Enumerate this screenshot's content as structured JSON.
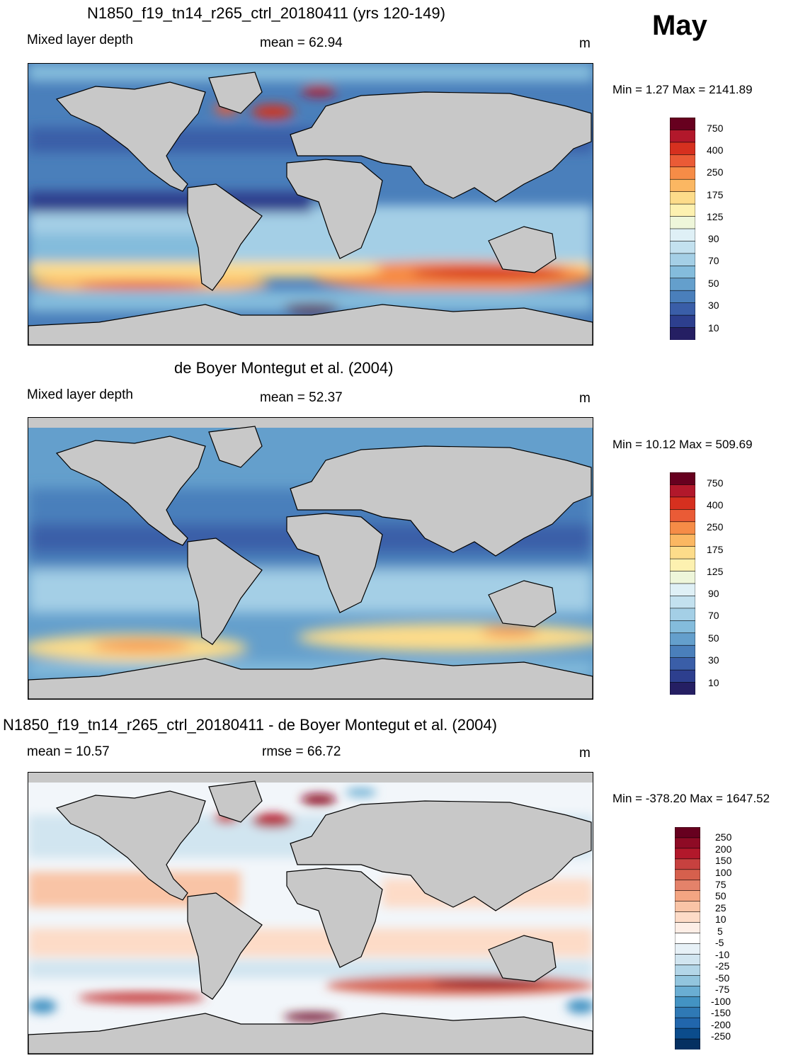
{
  "header": {
    "month": "May"
  },
  "panels": [
    {
      "id": "model",
      "title": "N1850_f19_tn14_r265_ctrl_20180411 (yrs 120-149)",
      "left_label": "Mixed layer depth",
      "center_label": "mean =  62.94",
      "units": "m",
      "minmax": "Min =   1.27 Max = 2141.89",
      "colorbar": {
        "labels": [
          "750",
          "400",
          "250",
          "175",
          "125",
          "90",
          "70",
          "50",
          "30",
          "10"
        ],
        "colors": [
          "#67001f",
          "#b2182b",
          "#d6301f",
          "#ea5b36",
          "#f68c47",
          "#fbb762",
          "#fddc8a",
          "#fdf1b0",
          "#eef6da",
          "#dff0f6",
          "#c3e1ef",
          "#a4cfe6",
          "#84bcdc",
          "#649fcc",
          "#4a7fbb",
          "#3a5ea8",
          "#2d3f8e",
          "#251f63"
        ]
      }
    },
    {
      "id": "obs",
      "title": "de Boyer Montegut et al. (2004)",
      "left_label": "Mixed layer depth",
      "center_label": "mean =  52.37",
      "units": "m",
      "minmax": "Min =  10.12 Max = 509.69",
      "colorbar": {
        "labels": [
          "750",
          "400",
          "250",
          "175",
          "125",
          "90",
          "70",
          "50",
          "30",
          "10"
        ],
        "colors": [
          "#67001f",
          "#b2182b",
          "#d6301f",
          "#ea5b36",
          "#f68c47",
          "#fbb762",
          "#fddc8a",
          "#fdf1b0",
          "#eef6da",
          "#dff0f6",
          "#c3e1ef",
          "#a4cfe6",
          "#84bcdc",
          "#649fcc",
          "#4a7fbb",
          "#3a5ea8",
          "#2d3f8e",
          "#251f63"
        ]
      }
    },
    {
      "id": "diff",
      "title": "N1850_f19_tn14_r265_ctrl_20180411 - de Boyer Montegut et al. (2004)",
      "left_label": "mean =  10.57",
      "center_label": "rmse =  66.72",
      "units": "m",
      "minmax": "Min = -378.20 Max = 1647.52",
      "colorbar": {
        "labels": [
          "250",
          "200",
          "150",
          "100",
          "75",
          "50",
          "25",
          "10",
          "5",
          "-5",
          "-10",
          "-25",
          "-50",
          "-75",
          "-100",
          "-150",
          "-200",
          "-250"
        ],
        "colors": [
          "#67001f",
          "#8e0b25",
          "#b2182b",
          "#c7413f",
          "#d6604d",
          "#e4826a",
          "#f4a582",
          "#f9c4a6",
          "#fddbc7",
          "#fdeee6",
          "#ffffff",
          "#e7f1f7",
          "#d1e5f0",
          "#b3d6e8",
          "#92c5de",
          "#6aaed3",
          "#4393c3",
          "#2f79b5",
          "#2166ac",
          "#0b4c8c",
          "#053061"
        ]
      }
    }
  ],
  "legend_colors": {
    "land": "#c8c8c8",
    "coast": "#000000"
  }
}
